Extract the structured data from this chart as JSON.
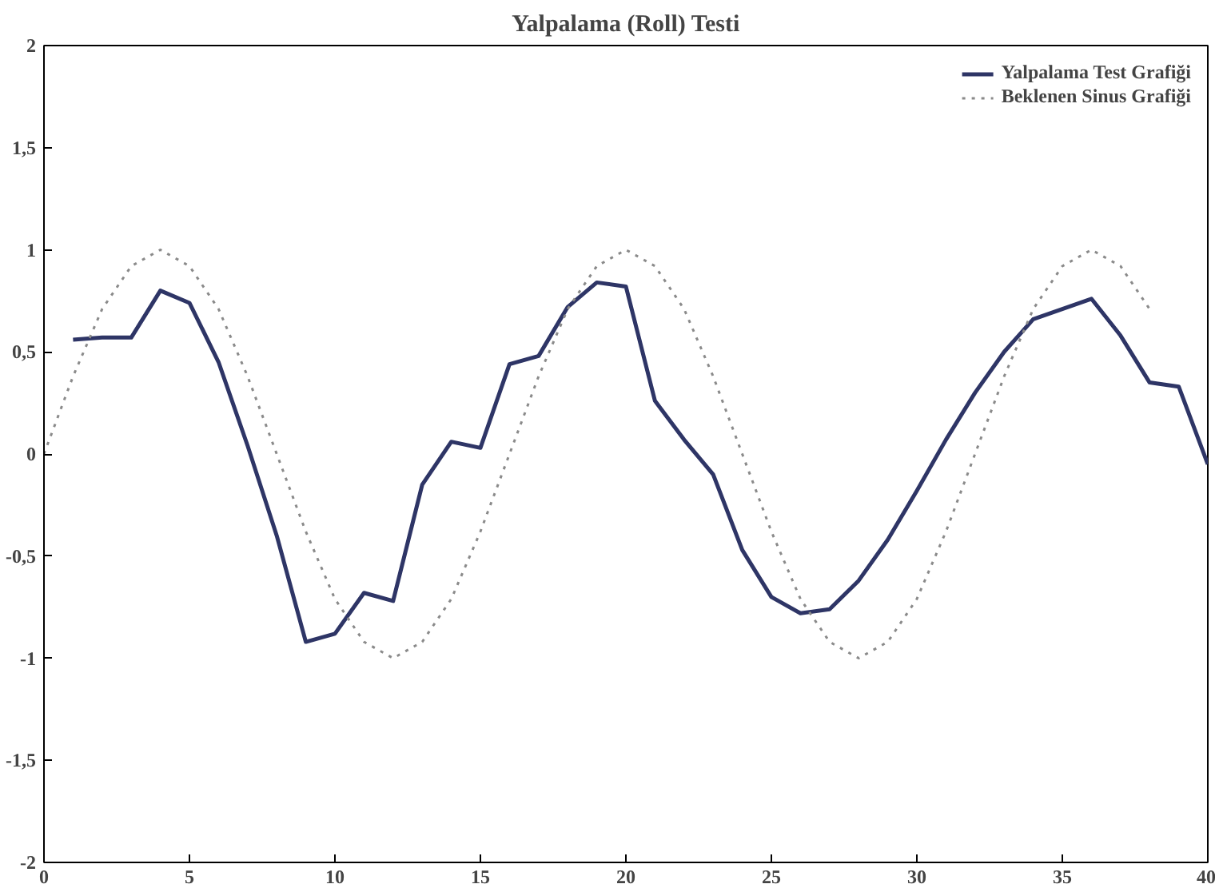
{
  "chart_data": {
    "type": "line",
    "title": "Yalpalama (Roll) Testi",
    "xlim": [
      0,
      40
    ],
    "xticks": [
      0,
      5,
      10,
      15,
      20,
      25,
      30,
      35,
      40
    ],
    "ylim": [
      -2,
      2
    ],
    "yticks": [
      {
        "value": -2,
        "label": "-2"
      },
      {
        "value": -1.5,
        "label": "-1,5"
      },
      {
        "value": -1,
        "label": "-1"
      },
      {
        "value": -0.5,
        "label": "-0,5"
      },
      {
        "value": 0,
        "label": "0"
      },
      {
        "value": 0.5,
        "label": "0,5"
      },
      {
        "value": 1,
        "label": "1"
      },
      {
        "value": 1.5,
        "label": "1,5"
      },
      {
        "value": 2,
        "label": "2"
      }
    ],
    "grid": false,
    "legend": "top right",
    "series": [
      {
        "name": "Yalpalama Test Grafiği",
        "color": "#2e3566",
        "line_style": "solid",
        "x": [
          1,
          2,
          3,
          4,
          5,
          6,
          7,
          8,
          9,
          10,
          11,
          12,
          13,
          14,
          15,
          16,
          17,
          18,
          19,
          20,
          21,
          22,
          23,
          24,
          25,
          26,
          27,
          28,
          29,
          30,
          31,
          32,
          33,
          34,
          35,
          36,
          37,
          38,
          39,
          40
        ],
        "values": [
          0.56,
          0.57,
          0.57,
          0.8,
          0.74,
          0.45,
          0.04,
          -0.4,
          -0.92,
          -0.88,
          -0.68,
          -0.72,
          -0.15,
          0.06,
          0.03,
          0.44,
          0.48,
          0.72,
          0.84,
          0.82,
          0.26,
          0.07,
          -0.1,
          -0.47,
          -0.7,
          -0.78,
          -0.76,
          -0.62,
          -0.42,
          -0.18,
          0.07,
          0.3,
          0.5,
          0.66,
          0.71,
          0.76,
          0.58,
          0.35,
          0.33,
          -0.05
        ]
      },
      {
        "name": "Beklenen Sinus Grafiği",
        "color": "#8a8a8a",
        "line_style": "dotted",
        "x": [
          0,
          1,
          2,
          3,
          4,
          5,
          6,
          7,
          8,
          9,
          10,
          11,
          12,
          13,
          14,
          15,
          16,
          17,
          18,
          19,
          20,
          21,
          22,
          23,
          24,
          25,
          26,
          27,
          28,
          29,
          30,
          31,
          32,
          33,
          34,
          35,
          36,
          37,
          38
        ],
        "values": [
          0,
          0.38,
          0.71,
          0.92,
          1,
          0.92,
          0.71,
          0.38,
          0,
          -0.38,
          -0.71,
          -0.92,
          -1,
          -0.92,
          -0.71,
          -0.38,
          0,
          0.38,
          0.71,
          0.92,
          1,
          0.92,
          0.71,
          0.38,
          0,
          -0.38,
          -0.71,
          -0.92,
          -1,
          -0.92,
          -0.71,
          -0.38,
          0,
          0.38,
          0.71,
          0.92,
          1,
          0.92,
          0.71
        ]
      }
    ]
  }
}
